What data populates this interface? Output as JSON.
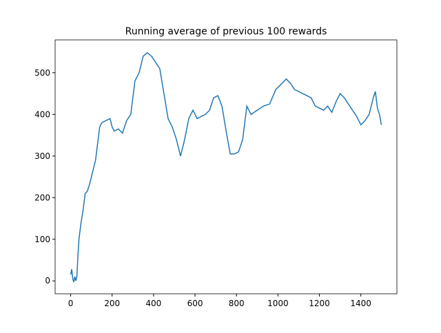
{
  "chart_data": {
    "type": "line",
    "title": "Running average of previous 100 rewards",
    "series": [
      {
        "color": "#1f77b4",
        "x": [
          0,
          5,
          10,
          15,
          20,
          25,
          30,
          35,
          40,
          50,
          60,
          70,
          80,
          90,
          100,
          110,
          120,
          130,
          140,
          150,
          170,
          190,
          200,
          210,
          230,
          250,
          270,
          290,
          310,
          330,
          350,
          370,
          390,
          410,
          430,
          450,
          470,
          490,
          510,
          530,
          550,
          570,
          590,
          610,
          630,
          650,
          670,
          690,
          710,
          730,
          750,
          770,
          790,
          810,
          830,
          850,
          870,
          900,
          930,
          960,
          990,
          1020,
          1040,
          1060,
          1080,
          1100,
          1120,
          1140,
          1160,
          1180,
          1200,
          1220,
          1240,
          1260,
          1280,
          1300,
          1320,
          1340,
          1360,
          1380,
          1400,
          1420,
          1440,
          1460,
          1470,
          1480,
          1490,
          1499
        ],
        "values": [
          15,
          28,
          5,
          -3,
          10,
          0,
          12,
          60,
          100,
          140,
          170,
          210,
          215,
          230,
          250,
          270,
          290,
          330,
          370,
          380,
          385,
          390,
          370,
          360,
          365,
          355,
          385,
          400,
          480,
          500,
          540,
          548,
          540,
          525,
          510,
          450,
          390,
          370,
          340,
          300,
          340,
          390,
          410,
          390,
          395,
          400,
          410,
          440,
          445,
          420,
          360,
          305,
          305,
          310,
          340,
          420,
          400,
          410,
          420,
          425,
          460,
          475,
          485,
          475,
          460,
          455,
          450,
          445,
          440,
          420,
          415,
          410,
          420,
          405,
          430,
          450,
          440,
          425,
          410,
          395,
          375,
          385,
          400,
          440,
          455,
          415,
          400,
          375
        ]
      }
    ],
    "xlim": [
      -75,
      1574
    ],
    "ylim": [
      -31,
      579
    ],
    "xticks": [
      0,
      200,
      400,
      600,
      800,
      1000,
      1200,
      1400
    ],
    "yticks": [
      0,
      100,
      200,
      300,
      400,
      500
    ]
  }
}
